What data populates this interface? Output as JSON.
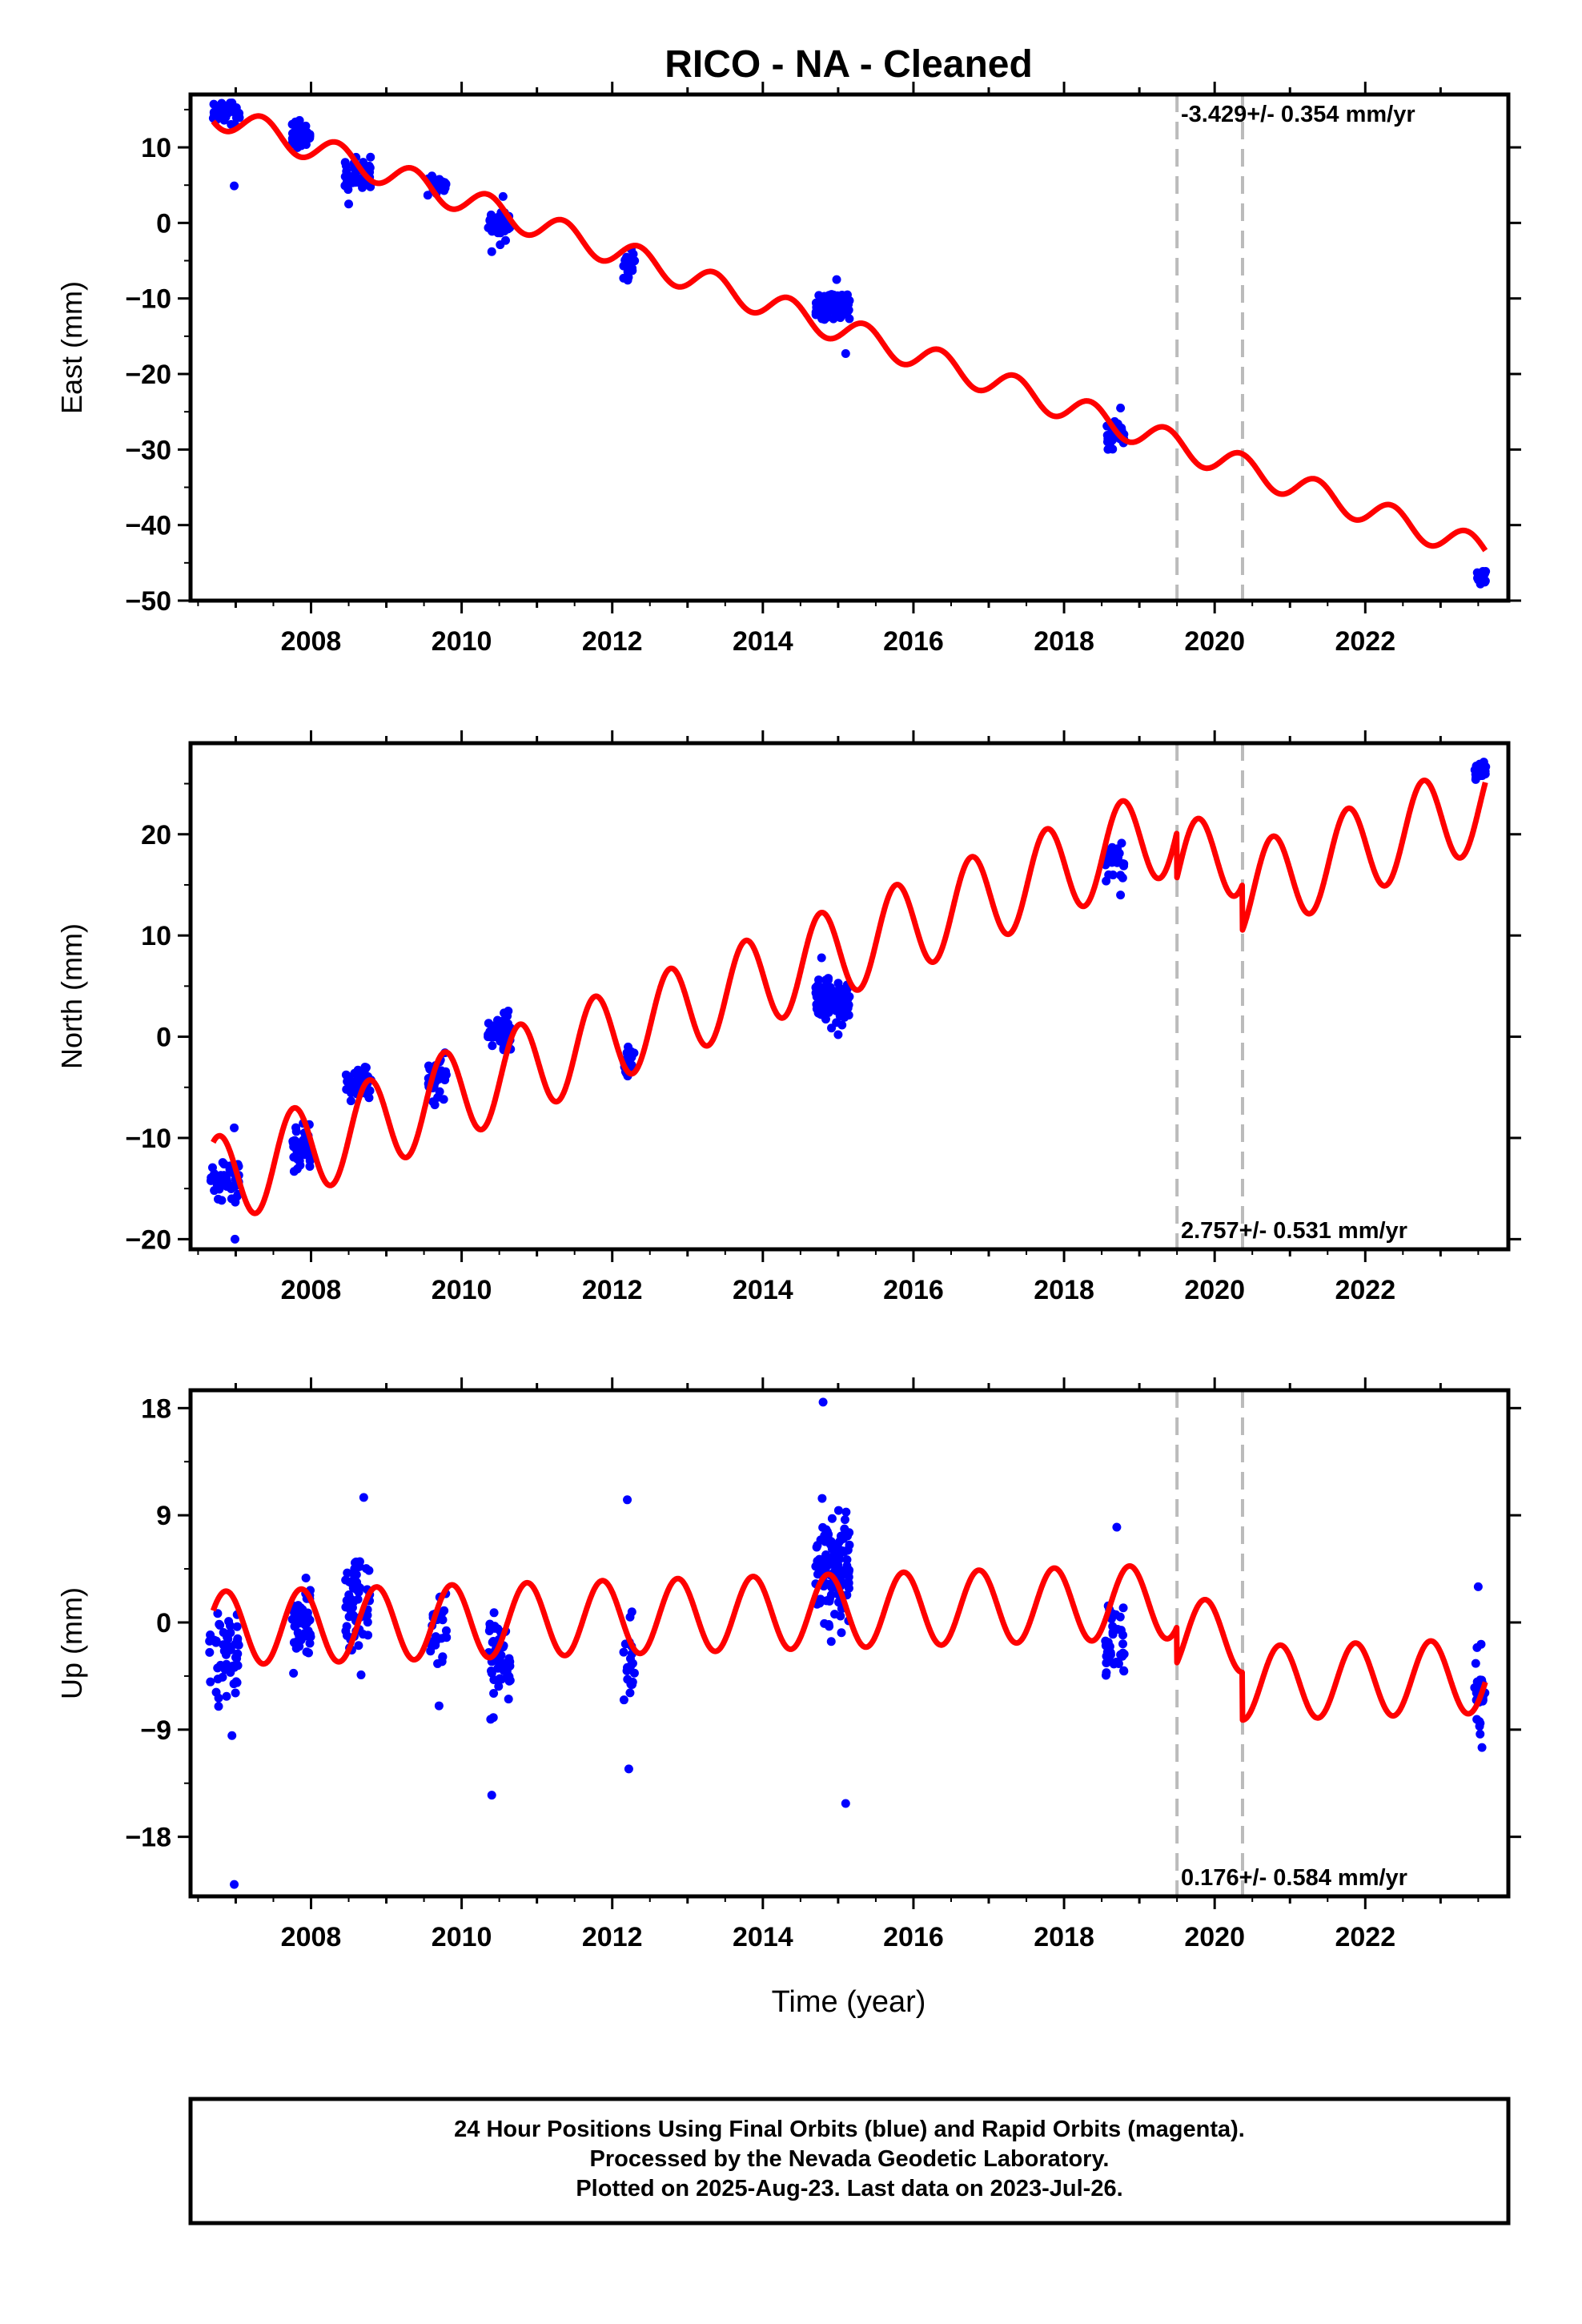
{
  "title": "RICO  - NA - Cleaned",
  "x_axis_label": "Time (year)",
  "footer": {
    "line1": "24 Hour Positions Using Final Orbits (blue) and Rapid Orbits (magenta).",
    "line2": "Processed by the Nevada Geodetic Laboratory.",
    "line3": "Plotted on 2025-Aug-23. Last data on 2023-Jul-26."
  },
  "colors": {
    "final_orbits": "#0000ff",
    "model": "#ff0000",
    "breaks": "#bbbbbb",
    "frame": "#000000"
  },
  "chart_data": [
    {
      "type": "scatter",
      "component": "East",
      "ylabel": "East (mm)",
      "xlim": [
        2006.4,
        2023.9
      ],
      "ylim": [
        -50,
        17
      ],
      "yticks": [
        10,
        0,
        -10,
        -20,
        -30,
        -40,
        -50
      ],
      "ytick_labels": [
        "10",
        "0",
        "−10",
        "−20",
        "−30",
        "−40",
        "−50"
      ],
      "xticks": [
        2008,
        2010,
        2012,
        2014,
        2016,
        2018,
        2020,
        2022
      ],
      "rate_text": "-3.429+/- 0.354 mm/yr",
      "rate_pos": "top-right",
      "breaks": [
        2019.5,
        2020.37
      ],
      "model": {
        "t0": 2006.7,
        "y0": 14.5,
        "rate": -3.429,
        "amp": 1.8,
        "phase": 0.1,
        "steps": [
          {
            "t": 2019.5,
            "dy": 0
          },
          {
            "t": 2020.37,
            "dy": 0
          }
        ]
      },
      "clusters": [
        {
          "t0": 2006.7,
          "t1": 2007.05,
          "center": 14.5,
          "spread": 1.5,
          "n": 40,
          "outliers": [
            {
              "t": 2006.98,
              "y": 4.9
            }
          ]
        },
        {
          "t0": 2007.75,
          "t1": 2008.0,
          "center": 11.5,
          "spread": 1.5,
          "n": 45,
          "outliers": []
        },
        {
          "t0": 2008.45,
          "t1": 2008.8,
          "center": 6.5,
          "spread": 1.7,
          "n": 45,
          "outliers": [
            {
              "t": 2008.5,
              "y": 2.5
            }
          ]
        },
        {
          "t0": 2009.55,
          "t1": 2009.8,
          "center": 5.0,
          "spread": 1.3,
          "n": 30,
          "outliers": []
        },
        {
          "t0": 2010.35,
          "t1": 2010.65,
          "center": 0.0,
          "spread": 1.6,
          "n": 45,
          "outliers": [
            {
              "t": 2010.4,
              "y": -3.8
            },
            {
              "t": 2010.55,
              "y": 3.5
            }
          ]
        },
        {
          "t0": 2012.15,
          "t1": 2012.3,
          "center": -5.5,
          "spread": 1.8,
          "n": 20,
          "outliers": []
        },
        {
          "t0": 2014.7,
          "t1": 2015.15,
          "center": -11.0,
          "spread": 1.6,
          "n": 120,
          "outliers": [
            {
              "t": 2015.1,
              "y": -17.3
            },
            {
              "t": 2014.98,
              "y": -7.5
            }
          ]
        },
        {
          "t0": 2018.55,
          "t1": 2018.8,
          "center": -28.5,
          "spread": 1.6,
          "n": 35,
          "outliers": [
            {
              "t": 2018.75,
              "y": -24.5
            }
          ]
        },
        {
          "t0": 2023.45,
          "t1": 2023.6,
          "center": -47.0,
          "spread": 0.8,
          "n": 20,
          "outliers": []
        }
      ]
    },
    {
      "type": "scatter",
      "component": "North",
      "ylabel": "North (mm)",
      "xlim": [
        2006.4,
        2023.9
      ],
      "ylim": [
        -21,
        29
      ],
      "yticks": [
        20,
        10,
        0,
        -10,
        -20
      ],
      "ytick_labels": [
        "20",
        "10",
        "0",
        "−10",
        "−20"
      ],
      "xticks": [
        2008,
        2010,
        2012,
        2014,
        2016,
        2018,
        2020,
        2022
      ],
      "rate_text": "2.757+/- 0.531 mm/yr",
      "rate_pos": "bottom-right",
      "breaks": [
        2019.5,
        2020.37
      ],
      "model": {
        "t0": 2006.7,
        "y0": -14.5,
        "rate": 2.757,
        "amp": 4.5,
        "phase": 0.52,
        "steps": [
          {
            "t": 2019.5,
            "dy": -4.5
          },
          {
            "t": 2020.37,
            "dy": -4.5
          }
        ]
      },
      "clusters": [
        {
          "t0": 2006.65,
          "t1": 2007.05,
          "center": -14.0,
          "spread": 1.8,
          "n": 45,
          "outliers": [
            {
              "t": 2006.99,
              "y": -20.0
            },
            {
              "t": 2006.98,
              "y": -9.0
            }
          ]
        },
        {
          "t0": 2007.75,
          "t1": 2008.0,
          "center": -11.0,
          "spread": 1.8,
          "n": 50,
          "outliers": []
        },
        {
          "t0": 2008.45,
          "t1": 2008.8,
          "center": -4.5,
          "spread": 1.6,
          "n": 45,
          "outliers": []
        },
        {
          "t0": 2009.55,
          "t1": 2009.8,
          "center": -4.0,
          "spread": 1.8,
          "n": 30,
          "outliers": []
        },
        {
          "t0": 2010.35,
          "t1": 2010.65,
          "center": 0.5,
          "spread": 1.3,
          "n": 40,
          "outliers": []
        },
        {
          "t0": 2012.15,
          "t1": 2012.3,
          "center": -2.0,
          "spread": 1.6,
          "n": 20,
          "outliers": []
        },
        {
          "t0": 2014.7,
          "t1": 2015.15,
          "center": 3.5,
          "spread": 1.9,
          "n": 120,
          "outliers": [
            {
              "t": 2015.0,
              "y": 0.2
            },
            {
              "t": 2014.78,
              "y": 7.8
            }
          ]
        },
        {
          "t0": 2018.55,
          "t1": 2018.8,
          "center": 17.5,
          "spread": 1.6,
          "n": 35,
          "outliers": [
            {
              "t": 2018.75,
              "y": 14.0
            }
          ]
        },
        {
          "t0": 2023.45,
          "t1": 2023.6,
          "center": 26.5,
          "spread": 0.9,
          "n": 20,
          "outliers": []
        }
      ]
    },
    {
      "type": "scatter",
      "component": "Up",
      "ylabel": "Up (mm)",
      "xlim": [
        2006.4,
        2023.9
      ],
      "ylim": [
        -23,
        19.5
      ],
      "yticks": [
        18,
        9,
        0,
        -9,
        -18
      ],
      "ytick_labels": [
        "18",
        "9",
        "0",
        "−9",
        "−18"
      ],
      "xticks": [
        2008,
        2010,
        2012,
        2014,
        2016,
        2018,
        2020,
        2022
      ],
      "xtick_labels": [
        "2008",
        "2010",
        "2012",
        "2014",
        "2016",
        "2018",
        "2020",
        "2022"
      ],
      "rate_text": "0.176+/- 0.584 mm/yr",
      "rate_pos": "bottom-right",
      "breaks": [
        2019.5,
        2020.37
      ],
      "model": {
        "t0": 2006.7,
        "y0": -0.5,
        "rate": 0.176,
        "amp": 3.1,
        "phase": 0.62,
        "steps": [
          {
            "t": 2019.5,
            "dy": -3.0
          },
          {
            "t": 2020.37,
            "dy": -4.0
          }
        ]
      },
      "clusters": [
        {
          "t0": 2006.65,
          "t1": 2007.05,
          "center": -2.5,
          "spread": 3.0,
          "n": 55,
          "outliers": [
            {
              "t": 2006.98,
              "y": -22.0
            },
            {
              "t": 2006.95,
              "y": -9.5
            }
          ]
        },
        {
          "t0": 2007.75,
          "t1": 2008.0,
          "center": 0.0,
          "spread": 2.8,
          "n": 50,
          "outliers": []
        },
        {
          "t0": 2008.45,
          "t1": 2008.8,
          "center": 2.0,
          "spread": 3.4,
          "n": 60,
          "outliers": [
            {
              "t": 2008.7,
              "y": 10.5
            }
          ]
        },
        {
          "t0": 2009.55,
          "t1": 2009.8,
          "center": 0.0,
          "spread": 2.8,
          "n": 30,
          "outliers": [
            {
              "t": 2009.7,
              "y": -7.0
            }
          ]
        },
        {
          "t0": 2010.35,
          "t1": 2010.65,
          "center": -3.0,
          "spread": 3.2,
          "n": 55,
          "outliers": [
            {
              "t": 2010.4,
              "y": -14.5
            }
          ]
        },
        {
          "t0": 2012.15,
          "t1": 2012.3,
          "center": -4.0,
          "spread": 3.5,
          "n": 20,
          "outliers": [
            {
              "t": 2012.2,
              "y": 10.3
            },
            {
              "t": 2012.22,
              "y": -12.3
            }
          ]
        },
        {
          "t0": 2014.7,
          "t1": 2015.15,
          "center": 4.5,
          "spread": 4.0,
          "n": 110,
          "outliers": [
            {
              "t": 2014.8,
              "y": 18.5
            },
            {
              "t": 2015.1,
              "y": -15.2
            }
          ]
        },
        {
          "t0": 2018.55,
          "t1": 2018.8,
          "center": -1.5,
          "spread": 3.0,
          "n": 40,
          "outliers": [
            {
              "t": 2018.7,
              "y": 8.0
            }
          ]
        },
        {
          "t0": 2023.45,
          "t1": 2023.6,
          "center": -6.0,
          "spread": 3.0,
          "n": 25,
          "outliers": [
            {
              "t": 2023.5,
              "y": 3.0
            },
            {
              "t": 2023.55,
              "y": -10.5
            }
          ]
        }
      ]
    }
  ]
}
